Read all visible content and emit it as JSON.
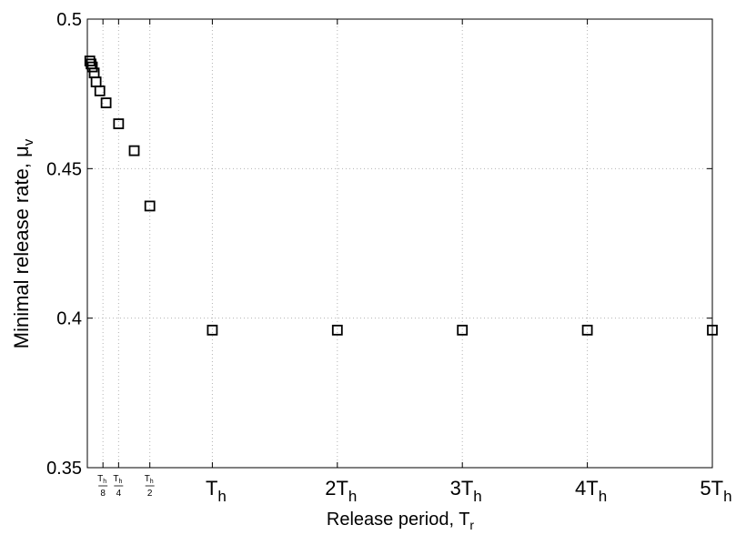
{
  "chart_data": {
    "type": "scatter",
    "title": "",
    "xlabel": "Release period, T",
    "xlabel_sub": "r",
    "ylabel": "Minimal release rate, μ",
    "ylabel_sub": "v",
    "xlim": [
      0,
      5
    ],
    "ylim": [
      0.35,
      0.5
    ],
    "grid": true,
    "marker": "square-open",
    "marker_color": "#000000",
    "x_unit_symbol": "T",
    "x_unit_sub": "h",
    "xticks": [
      {
        "value": 0.125,
        "kind": "fraction",
        "num": "T",
        "num_sub": "h",
        "den": "8"
      },
      {
        "value": 0.25,
        "kind": "fraction",
        "num": "T",
        "num_sub": "h",
        "den": "4"
      },
      {
        "value": 0.5,
        "kind": "fraction",
        "num": "T",
        "num_sub": "h",
        "den": "2"
      },
      {
        "value": 1,
        "kind": "multiple",
        "coef": "",
        "sym": "T",
        "sub": "h"
      },
      {
        "value": 2,
        "kind": "multiple",
        "coef": "2",
        "sym": "T",
        "sub": "h"
      },
      {
        "value": 3,
        "kind": "multiple",
        "coef": "3",
        "sym": "T",
        "sub": "h"
      },
      {
        "value": 4,
        "kind": "multiple",
        "coef": "4",
        "sym": "T",
        "sub": "h"
      },
      {
        "value": 5,
        "kind": "multiple",
        "coef": "5",
        "sym": "T",
        "sub": "h"
      }
    ],
    "yticks": [
      {
        "value": 0.35,
        "label": "0.35"
      },
      {
        "value": 0.4,
        "label": "0.4"
      },
      {
        "value": 0.45,
        "label": "0.45"
      },
      {
        "value": 0.5,
        "label": "0.5"
      }
    ],
    "series": [
      {
        "x": [
          0.02,
          0.03,
          0.04,
          0.055,
          0.07,
          0.1,
          0.15,
          0.25,
          0.375,
          0.5,
          1,
          2,
          3,
          4,
          5
        ],
        "y": [
          0.486,
          0.485,
          0.484,
          0.482,
          0.479,
          0.476,
          0.472,
          0.465,
          0.456,
          0.4375,
          0.396,
          0.396,
          0.396,
          0.396,
          0.396
        ]
      }
    ]
  }
}
